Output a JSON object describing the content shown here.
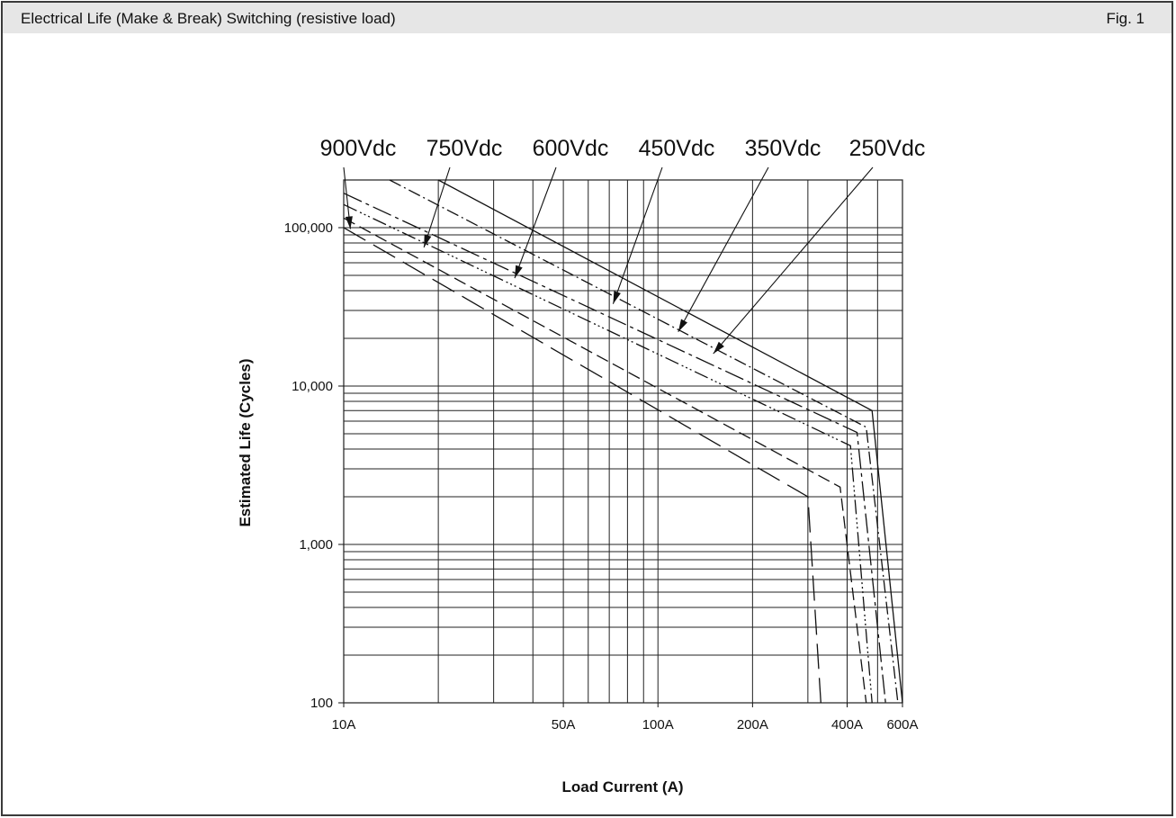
{
  "header": {
    "title": "Electrical Life (Make & Break) Switching (resistive load)",
    "fig": "Fig. 1",
    "background": "#e6e6e6"
  },
  "chart_data": {
    "type": "line",
    "title": "",
    "xlabel": "Load Current (A)",
    "ylabel": "Estimated Life (Cycles)",
    "xscale": "log",
    "yscale": "log",
    "xlim": [
      10,
      600
    ],
    "ylim": [
      100,
      200000
    ],
    "grid": true,
    "x_tick_labels": [
      {
        "value": 10,
        "label": "10A"
      },
      {
        "value": 50,
        "label": "50A"
      },
      {
        "value": 100,
        "label": "100A"
      },
      {
        "value": 200,
        "label": "200A"
      },
      {
        "value": 400,
        "label": "400A"
      },
      {
        "value": 600,
        "label": "600A"
      }
    ],
    "y_tick_labels": [
      {
        "value": 100,
        "label": "100"
      },
      {
        "value": 1000,
        "label": "1,000"
      },
      {
        "value": 10000,
        "label": "10,000"
      },
      {
        "value": 100000,
        "label": "100,000"
      }
    ],
    "x_gridlines": [
      10,
      20,
      30,
      40,
      50,
      60,
      70,
      80,
      90,
      100,
      200,
      300,
      400,
      500,
      600
    ],
    "y_gridlines": [
      100,
      200,
      300,
      400,
      500,
      600,
      700,
      800,
      900,
      1000,
      2000,
      3000,
      4000,
      5000,
      6000,
      7000,
      8000,
      9000,
      10000,
      20000,
      30000,
      40000,
      50000,
      60000,
      70000,
      80000,
      90000,
      100000,
      200000
    ],
    "series": [
      {
        "name": "250Vdc",
        "dash": "solid",
        "x": [
          20,
          480,
          600
        ],
        "y": [
          200000,
          7000,
          100
        ],
        "label_arrow_tip": [
          150,
          16000
        ]
      },
      {
        "name": "350Vdc",
        "dash": "14,4,2,4",
        "x": [
          14,
          460,
          580
        ],
        "y": [
          200000,
          5500,
          100
        ],
        "label_arrow_tip": [
          116,
          22000
        ]
      },
      {
        "name": "450Vdc",
        "dash": "22,5,4,5",
        "x": [
          10,
          430,
          530
        ],
        "y": [
          165000,
          5100,
          100
        ],
        "label_arrow_tip": [
          72,
          33000
        ]
      },
      {
        "name": "600Vdc",
        "dash": "16,4,2,3,2,3,2,4",
        "x": [
          10,
          410,
          480
        ],
        "y": [
          140000,
          4200,
          100
        ],
        "label_arrow_tip": [
          35,
          48000
        ]
      },
      {
        "name": "750Vdc",
        "dash": "14,6",
        "x": [
          10,
          380,
          460
        ],
        "y": [
          115000,
          2300,
          100
        ],
        "label_arrow_tip": [
          18,
          75000
        ]
      },
      {
        "name": "900Vdc",
        "dash": "28,10",
        "x": [
          10,
          300,
          330
        ],
        "y": [
          100000,
          2000,
          100
        ],
        "label_arrow_tip": [
          10.5,
          98000
        ]
      }
    ]
  }
}
